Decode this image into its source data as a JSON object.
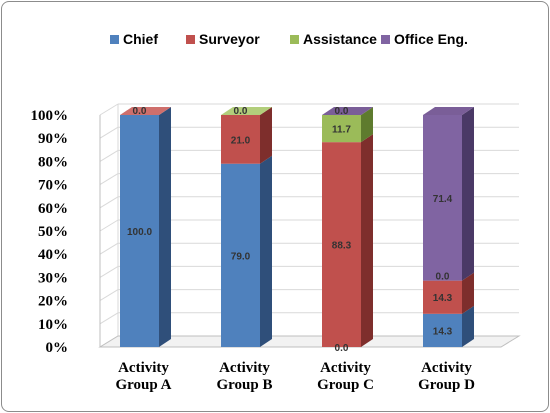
{
  "chart_data": {
    "type": "bar",
    "stacked": true,
    "percent": true,
    "three_d": true,
    "categories": [
      [
        "Activity",
        "Group A"
      ],
      [
        "Activity",
        "Group B"
      ],
      [
        "Activity",
        "Group C"
      ],
      [
        "Activity",
        "Group D"
      ]
    ],
    "series": [
      {
        "name": "Chief",
        "values": [
          100.0,
          79.0,
          0.0,
          14.3
        ],
        "color": "#4F81BD",
        "side": "#2F4F7A",
        "top": "#6C8FC2"
      },
      {
        "name": "Surveyor",
        "values": [
          0.0,
          21.0,
          88.3,
          14.3
        ],
        "color": "#C0504D",
        "side": "#7E2E2C",
        "top": "#CF6F6C"
      },
      {
        "name": "Assistance",
        "values": [
          0.0,
          0.0,
          11.7,
          0.0
        ],
        "color": "#9BBB59",
        "side": "#5E7B2E",
        "top": "#B2CE7B"
      },
      {
        "name": "Office Eng.",
        "values": [
          0.0,
          0.0,
          0.0,
          71.4
        ],
        "color": "#8064A2",
        "side": "#4A3966",
        "top": "#7A5E98"
      }
    ],
    "labels": [
      [
        "100.0",
        null,
        null,
        "0.0"
      ],
      [
        "79.0",
        "21.0",
        null,
        "0.0"
      ],
      [
        "0.0",
        "88.3",
        "11.7",
        "0.0"
      ],
      [
        "14.3",
        "14.3",
        "0.0",
        "71.4"
      ]
    ],
    "yticks": [
      "0%",
      "10%",
      "20%",
      "30%",
      "40%",
      "50%",
      "60%",
      "70%",
      "80%",
      "90%",
      "100%"
    ],
    "ylim": [
      0,
      100
    ],
    "grid": true,
    "legend": "top"
  }
}
